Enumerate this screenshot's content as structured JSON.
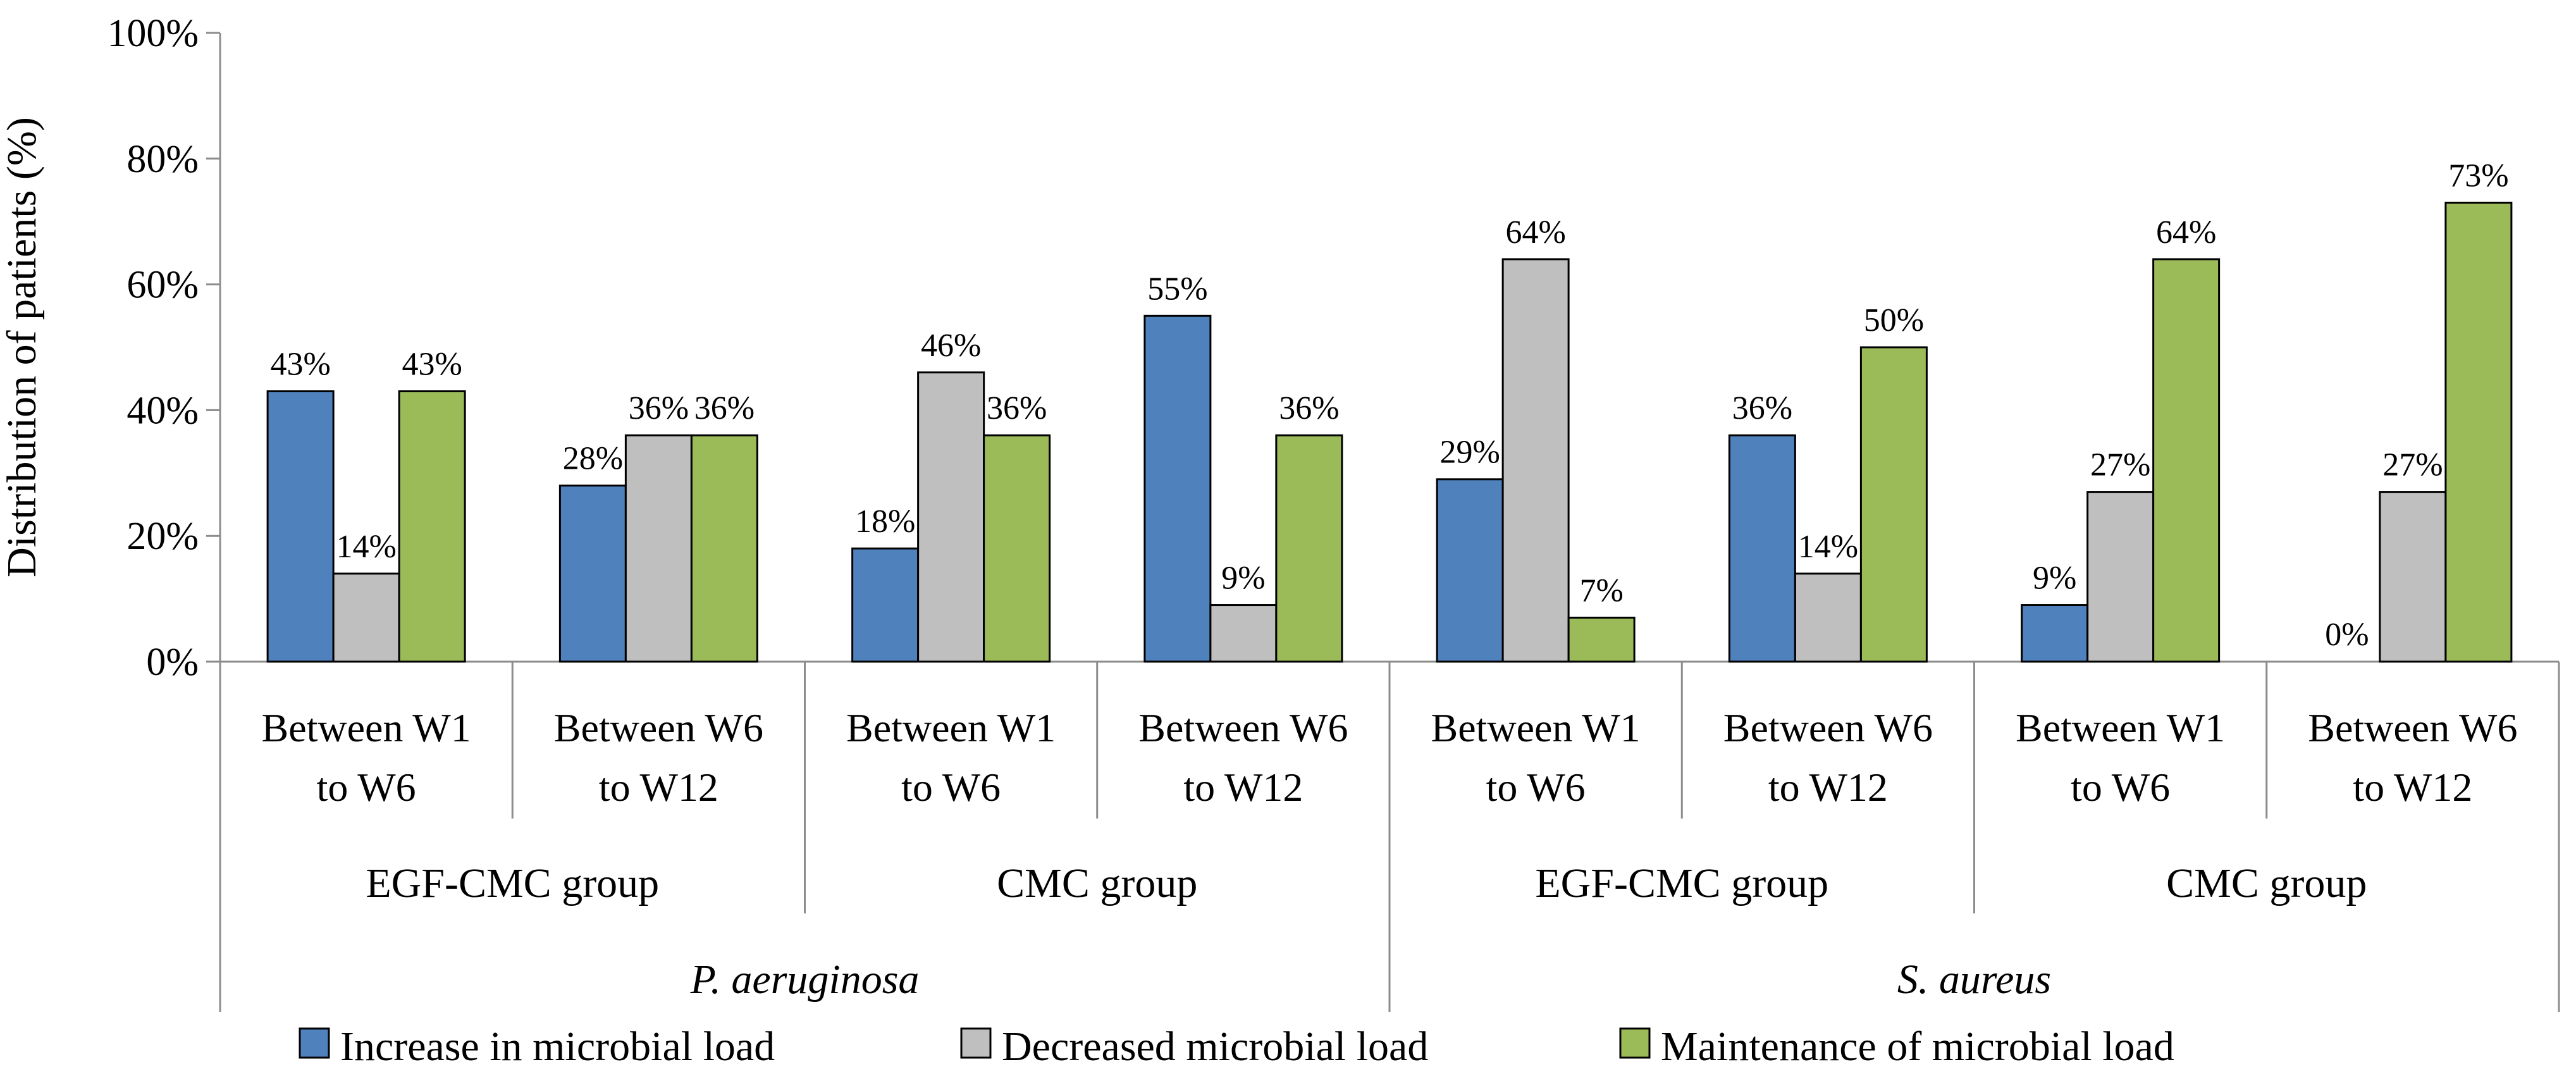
{
  "chart_data": {
    "type": "bar",
    "title": "",
    "xlabel": "",
    "ylabel": "Distribution of patients (%)",
    "ylim": [
      0,
      100
    ],
    "yticks": [
      "0%",
      "20%",
      "40%",
      "60%",
      "80%",
      "100%"
    ],
    "grid": false,
    "legend_position": "bottom",
    "categories": [
      "Between W1 to W6",
      "Between W6 to W12",
      "Between W1 to W6",
      "Between W6 to W12",
      "Between W1 to W6",
      "Between W6 to W12",
      "Between W1 to W6",
      "Between W6 to W12"
    ],
    "category_lines": [
      [
        "Between W1",
        "to W6"
      ],
      [
        "Between W6",
        "to W12"
      ],
      [
        "Between W1",
        "to W6"
      ],
      [
        "Between W6",
        "to W12"
      ],
      [
        "Between W1",
        "to W6"
      ],
      [
        "Between W6",
        "to W12"
      ],
      [
        "Between W1",
        "to W6"
      ],
      [
        "Between W6",
        "to W12"
      ]
    ],
    "groups": [
      "EGF-CMC group",
      "CMC group",
      "EGF-CMC group",
      "CMC group"
    ],
    "organisms": [
      "P. aeruginosa",
      "S. aureus"
    ],
    "series": [
      {
        "name": "Increase in microbial load",
        "color": "#4f81bd",
        "values": [
          43,
          28,
          18,
          55,
          29,
          36,
          9,
          0
        ],
        "labels": [
          "43%",
          "28%",
          "18%",
          "55%",
          "29%",
          "36%",
          "9%",
          "0%"
        ]
      },
      {
        "name": "Decreased microbial load",
        "color": "#bfbfbf",
        "values": [
          14,
          36,
          46,
          9,
          64,
          14,
          27,
          27
        ],
        "labels": [
          "14%",
          "36%",
          "46%",
          "9%",
          "64%",
          "14%",
          "27%",
          "27%"
        ]
      },
      {
        "name": "Maintenance of microbial load",
        "color": "#9bbb59",
        "values": [
          43,
          36,
          36,
          36,
          7,
          50,
          64,
          73
        ],
        "labels": [
          "43%",
          "36%",
          "36%",
          "36%",
          "7%",
          "50%",
          "64%",
          "73%"
        ]
      }
    ]
  }
}
